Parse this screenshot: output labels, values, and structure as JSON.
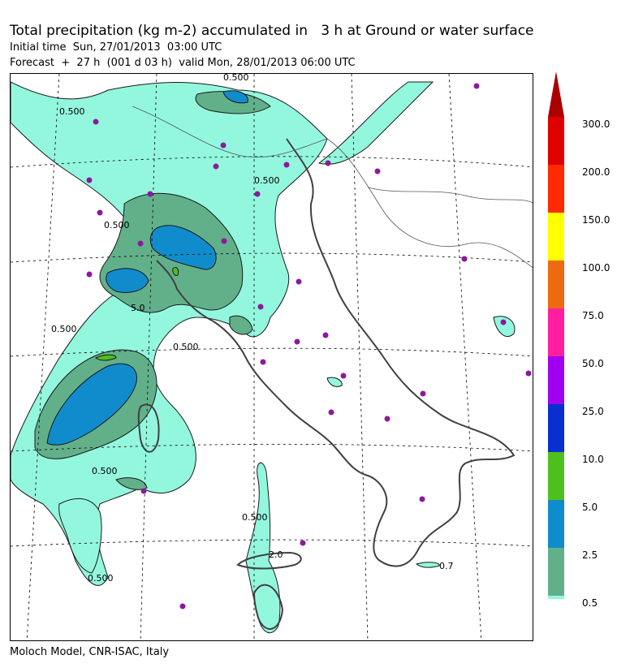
{
  "header": {
    "title": "Total precipitation (kg m-2) accumulated in   3 h at Ground or water surface",
    "initial_time": "Initial time  Sun, 27/01/2013  03:00 UTC",
    "forecast": "Forecast  +  27 h  (001 d 03 h)  valid Mon, 28/01/2013 06:00 UTC"
  },
  "footer": {
    "credit": "Moloch Model, CNR-ISAC, Italy"
  },
  "map": {
    "contour_labels": [
      "0.500",
      "0.500",
      "0.500",
      "0.500",
      "0.500",
      "0.500",
      "0.500",
      "0.500",
      "0.500",
      "0.7",
      "5.0",
      "2.0"
    ],
    "colors": {
      "land_outline": "#404040",
      "graticule": "#000000",
      "stations": "#8b1a9b"
    }
  },
  "legend": {
    "top_color": "#aa0000",
    "classes": [
      {
        "label": "300.0",
        "color": "#e00000"
      },
      {
        "label": "200.0",
        "color": "#ff2a00"
      },
      {
        "label": "150.0",
        "color": "#ffff00"
      },
      {
        "label": "100.0",
        "color": "#ee6a10"
      },
      {
        "label": "75.0",
        "color": "#ff1f9f"
      },
      {
        "label": "50.0",
        "color": "#a000ee"
      },
      {
        "label": "25.0",
        "color": "#0a2fcf"
      },
      {
        "label": "10.0",
        "color": "#4ec01e"
      },
      {
        "label": "5.0",
        "color": "#108ccc"
      },
      {
        "label": "2.5",
        "color": "#62b08a"
      },
      {
        "label": "0.5",
        "color": "#93f7de"
      }
    ]
  }
}
